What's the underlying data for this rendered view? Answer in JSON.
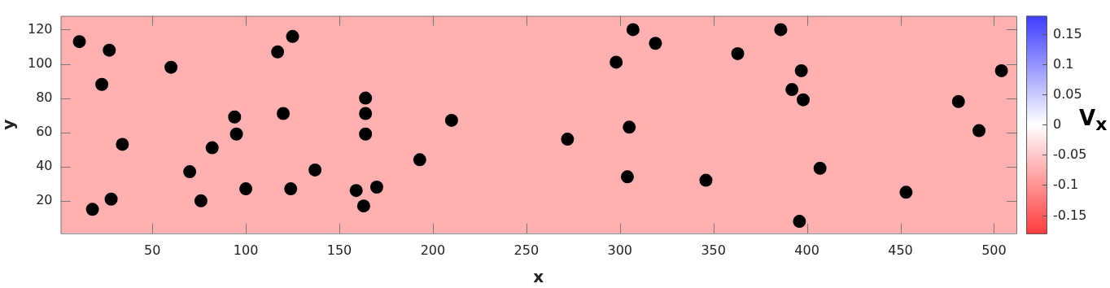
{
  "chart_data": {
    "type": "scatter",
    "xlabel": "x",
    "ylabel": "y",
    "clabel": "V$_{x}$",
    "xlim": [
      1,
      512
    ],
    "ylim": [
      1,
      128
    ],
    "xticks": [
      50,
      100,
      150,
      200,
      250,
      300,
      350,
      400,
      450,
      500
    ],
    "yticks": [
      20,
      40,
      60,
      80,
      100,
      120
    ],
    "clim": [
      -0.18,
      0.18
    ],
    "cticks": [
      -0.15,
      -0.1,
      -0.05,
      0,
      0.05,
      0.1,
      0.15
    ],
    "bands": [
      {
        "axis": "x",
        "from": 1,
        "to": 512,
        "color": "#ffb0b0"
      }
    ],
    "series": [
      {
        "type": "scatter",
        "color": "#000000",
        "marker": "circle",
        "x": [
          11,
          27,
          23,
          60,
          34,
          18,
          28,
          70,
          76,
          82,
          94,
          95,
          100,
          117,
          125,
          120,
          124,
          137,
          159,
          163,
          164,
          164,
          164,
          170,
          193,
          210,
          272,
          298,
          307,
          319,
          305,
          304,
          346,
          363,
          386,
          397,
          392,
          398,
          407,
          396,
          453,
          481,
          492,
          504
        ],
        "values": [
          113,
          108,
          88,
          98,
          53,
          15,
          21,
          37,
          20,
          51,
          69,
          59,
          27,
          107,
          116,
          71,
          27,
          38,
          26,
          17,
          80,
          71,
          59,
          28,
          44,
          67,
          56,
          101,
          120,
          112,
          63,
          34,
          32,
          106,
          120,
          96,
          85,
          79,
          39,
          8,
          25,
          78,
          61,
          96
        ]
      }
    ]
  }
}
